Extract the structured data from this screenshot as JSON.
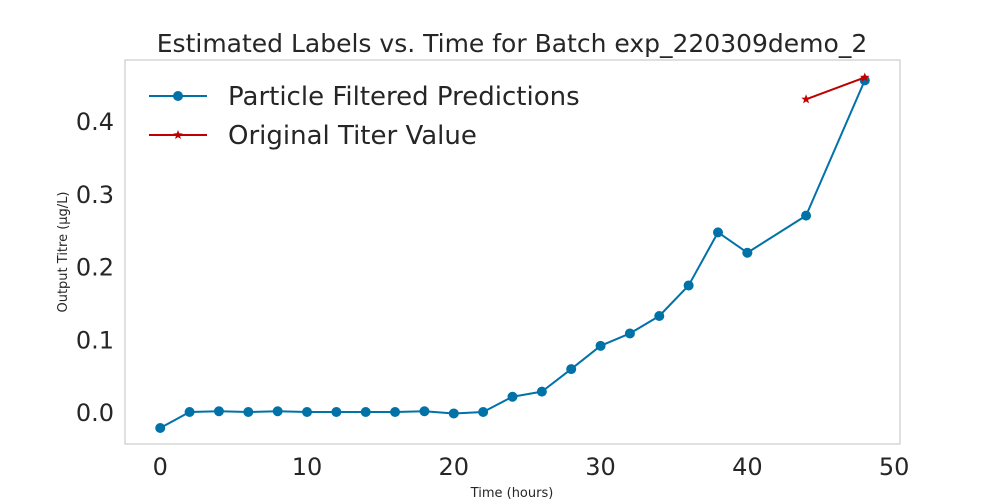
{
  "chart_data": {
    "type": "line",
    "title": "Estimated Labels vs. Time for Batch exp_220309demo_2",
    "xlabel": "Time (hours)",
    "ylabel": "Output Titre (µg/L)",
    "xlim": [
      -2.4,
      50.4
    ],
    "ylim": [
      -0.044,
      0.484
    ],
    "xticks": [
      0,
      10,
      20,
      30,
      40,
      50
    ],
    "xtick_labels": [
      "0",
      "10",
      "20",
      "30",
      "40",
      "50"
    ],
    "yticks": [
      0.0,
      0.1,
      0.2,
      0.3,
      0.4
    ],
    "ytick_labels": [
      "0.0",
      "0.1",
      "0.2",
      "0.3",
      "0.4"
    ],
    "grid": false,
    "legend_position": "top-left",
    "series": [
      {
        "name": "Particle Filtered Predictions",
        "color": "#0072a8",
        "marker": "circle",
        "points": [
          [
            0,
            -0.022
          ],
          [
            2,
            0.0
          ],
          [
            4,
            0.001
          ],
          [
            6,
            0.0
          ],
          [
            8,
            0.001
          ],
          [
            10,
            0.0
          ],
          [
            12,
            0.0
          ],
          [
            14,
            0.0
          ],
          [
            16,
            0.0
          ],
          [
            18,
            0.001
          ],
          [
            20,
            -0.002
          ],
          [
            22,
            0.0
          ],
          [
            24,
            0.021
          ],
          [
            26,
            0.028
          ],
          [
            28,
            0.059
          ],
          [
            30,
            0.091
          ],
          [
            32,
            0.108
          ],
          [
            34,
            0.132
          ],
          [
            36,
            0.174
          ],
          [
            38,
            0.247
          ],
          [
            40,
            0.219
          ],
          [
            44,
            0.27
          ],
          [
            48,
            0.456
          ]
        ]
      },
      {
        "name": "Original Titer Value",
        "color": "#c00000",
        "marker": "star",
        "points": [
          [
            44,
            0.43
          ],
          [
            48,
            0.46
          ]
        ]
      }
    ]
  }
}
